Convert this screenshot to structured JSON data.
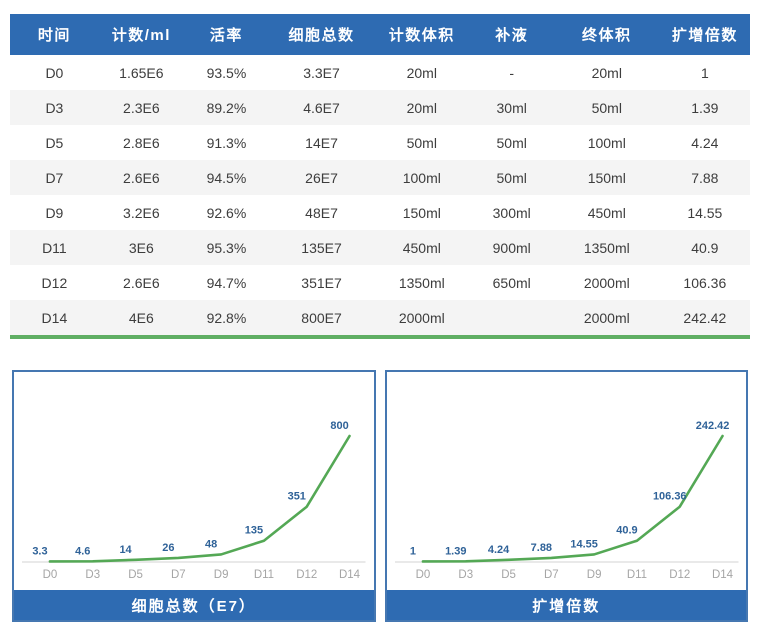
{
  "colors": {
    "header_blue": "#2e6bb2",
    "panel_border": "#4577b1",
    "divider_green": "#5fae63",
    "line_green": "#54a855",
    "label_blue": "#2f6298",
    "tick_gray": "#a5a5a5",
    "axis_gray": "#dcdcdc",
    "stripe_gray": "#f4f4f4",
    "cell_text": "#3d3d3d"
  },
  "table": {
    "headers": [
      "时间",
      "计数/ml",
      "活率",
      "细胞总数",
      "计数体积",
      "补液",
      "终体积",
      "扩增倍数"
    ],
    "rows": [
      [
        "D0",
        "1.65E6",
        "93.5%",
        "3.3E7",
        "20ml",
        "-",
        "20ml",
        "1"
      ],
      [
        "D3",
        "2.3E6",
        "89.2%",
        "4.6E7",
        "20ml",
        "30ml",
        "50ml",
        "1.39"
      ],
      [
        "D5",
        "2.8E6",
        "91.3%",
        "14E7",
        "50ml",
        "50ml",
        "100ml",
        "4.24"
      ],
      [
        "D7",
        "2.6E6",
        "94.5%",
        "26E7",
        "100ml",
        "50ml",
        "150ml",
        "7.88"
      ],
      [
        "D9",
        "3.2E6",
        "92.6%",
        "48E7",
        "150ml",
        "300ml",
        "450ml",
        "14.55"
      ],
      [
        "D11",
        "3E6",
        "95.3%",
        "135E7",
        "450ml",
        "900ml",
        "1350ml",
        "40.9"
      ],
      [
        "D12",
        "2.6E6",
        "94.7%",
        "351E7",
        "1350ml",
        "650ml",
        "2000ml",
        "106.36"
      ],
      [
        "D14",
        "4E6",
        "92.8%",
        "800E7",
        "2000ml",
        "",
        "2000ml",
        "242.42"
      ]
    ]
  },
  "chart_data": [
    {
      "type": "line",
      "title": "细胞总数（E7）",
      "categories": [
        "D0",
        "D3",
        "D5",
        "D7",
        "D9",
        "D11",
        "D12",
        "D14"
      ],
      "values": [
        3.3,
        4.6,
        14,
        26,
        48,
        135,
        351,
        800
      ],
      "xlabel": "",
      "ylabel": "",
      "ylim": [
        0,
        800
      ],
      "grid": false,
      "legend_position": "none",
      "data_labels": true
    },
    {
      "type": "line",
      "title": "扩增倍数",
      "categories": [
        "D0",
        "D3",
        "D5",
        "D7",
        "D9",
        "D11",
        "D12",
        "D14"
      ],
      "values": [
        1,
        1.39,
        4.24,
        7.88,
        14.55,
        40.9,
        106.36,
        242.42
      ],
      "xlabel": "",
      "ylabel": "",
      "ylim": [
        0,
        242.42
      ],
      "grid": false,
      "legend_position": "none",
      "data_labels": true
    }
  ]
}
